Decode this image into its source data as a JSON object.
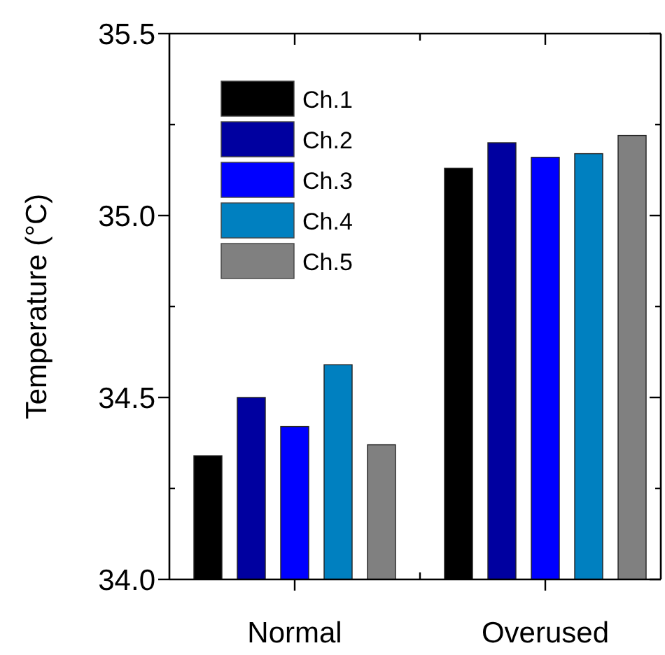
{
  "chart_data": {
    "type": "bar",
    "ylabel": "Temperature (°C)",
    "categories": [
      "Normal",
      "Overused"
    ],
    "series": [
      {
        "name": "Ch.1",
        "color": "#000000",
        "values": [
          34.34,
          35.13
        ]
      },
      {
        "name": "Ch.2",
        "color": "#0000a0",
        "values": [
          34.5,
          35.2
        ]
      },
      {
        "name": "Ch.3",
        "color": "#0000ff",
        "values": [
          34.42,
          35.16
        ]
      },
      {
        "name": "Ch.4",
        "color": "#0080c0",
        "values": [
          34.59,
          35.17
        ]
      },
      {
        "name": "Ch.5",
        "color": "#808080",
        "values": [
          34.37,
          35.22
        ]
      }
    ],
    "ylim": [
      34.0,
      35.5
    ],
    "yticks": [
      {
        "value": 34.0,
        "label": "34.0"
      },
      {
        "value": 34.25,
        "label": null
      },
      {
        "value": 34.5,
        "label": "34.5"
      },
      {
        "value": 34.75,
        "label": null
      },
      {
        "value": 35.0,
        "label": "35.0"
      },
      {
        "value": 35.25,
        "label": null
      },
      {
        "value": 35.5,
        "label": "35.5"
      }
    ],
    "grid": false,
    "legend": "top left"
  }
}
